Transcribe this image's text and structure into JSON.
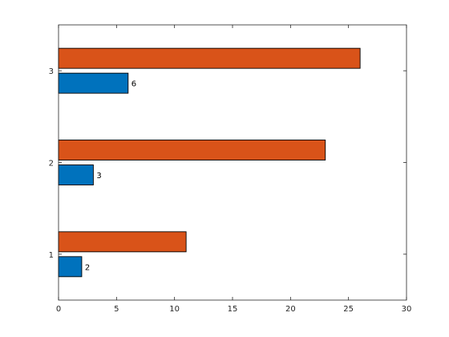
{
  "chart_data": {
    "type": "bar",
    "orientation": "horizontal",
    "title": "",
    "xlabel": "",
    "ylabel": "",
    "categories": [
      "1",
      "2",
      "3"
    ],
    "xlim": [
      0,
      30
    ],
    "x_ticks": [
      "0",
      "5",
      "10",
      "15",
      "20",
      "25",
      "30"
    ],
    "grid": false,
    "legend": "none",
    "series": [
      {
        "values": [
          2,
          3,
          6
        ],
        "color": "#0072BD",
        "labels": [
          "2",
          "3",
          "6"
        ]
      },
      {
        "values": [
          11,
          23,
          26
        ],
        "color": "#D95319"
      }
    ]
  }
}
